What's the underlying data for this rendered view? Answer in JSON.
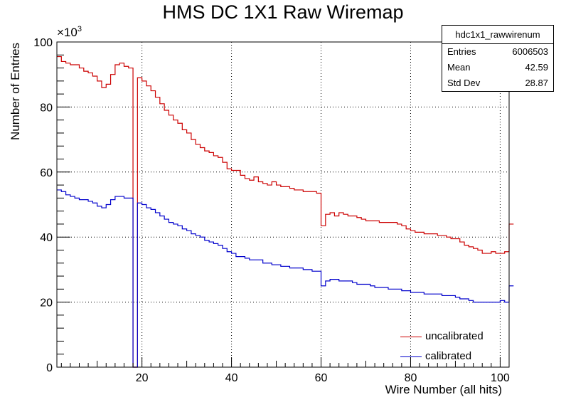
{
  "chart_data": {
    "type": "histogram",
    "title": "HMS DC 1X1 Raw Wiremap",
    "xlabel": "Wire Number (all hits)",
    "ylabel": "Number of Entries",
    "y_exponent_base": "×10",
    "y_exponent_power": "3",
    "xlim": [
      1,
      102
    ],
    "ylim": [
      0,
      100
    ],
    "x_ticks": [
      20,
      40,
      60,
      80,
      100
    ],
    "y_ticks": [
      0,
      20,
      40,
      60,
      80,
      100
    ],
    "grid": true,
    "legend_position": "bottom-right",
    "bin_width": 1,
    "bin_start": 1,
    "series": [
      {
        "name": "uncalibrated",
        "color": "#cc0000",
        "values": [
          95.5,
          94,
          93.5,
          93,
          93,
          92,
          91,
          90.5,
          89.5,
          88,
          86,
          87,
          90,
          93,
          93.5,
          92.5,
          92,
          0,
          89,
          88,
          86.5,
          85,
          83,
          81,
          79,
          77.5,
          76,
          75,
          73,
          72,
          70,
          68.5,
          67.5,
          66.5,
          66,
          65,
          64.5,
          63,
          61,
          60.5,
          60.5,
          59,
          58,
          57.5,
          58.5,
          57,
          56.5,
          56,
          57,
          56,
          55.5,
          55.5,
          55,
          54.5,
          54.5,
          54,
          54,
          54,
          53.5,
          43.5,
          47,
          47.5,
          46.5,
          47.5,
          47,
          46.5,
          46.5,
          46,
          45.5,
          45,
          45,
          45,
          44.5,
          44.5,
          44.5,
          44.5,
          44,
          43.5,
          42.5,
          42,
          41.5,
          41.5,
          41,
          41,
          41,
          40.5,
          40.5,
          40,
          39.5,
          39.5,
          38.5,
          37.5,
          37,
          36.5,
          36,
          35,
          35,
          35.5,
          35,
          35,
          35.5,
          44
        ]
      },
      {
        "name": "calibrated",
        "color": "#0000cc",
        "values": [
          54.5,
          54,
          53,
          52.5,
          52,
          51.5,
          51.5,
          51,
          50.5,
          49.5,
          49,
          50,
          51.5,
          52.5,
          52.5,
          52,
          52,
          0,
          50.5,
          50,
          49,
          48.5,
          47.5,
          46.5,
          45.5,
          44.5,
          44,
          43.5,
          42.5,
          42,
          41,
          40.5,
          40,
          39,
          38.5,
          38,
          37.5,
          36.5,
          35.5,
          35,
          34,
          34,
          33.5,
          33,
          33,
          33,
          32,
          32,
          31.5,
          31.5,
          31,
          31,
          30.5,
          30.5,
          30.5,
          30,
          30,
          29.5,
          29.5,
          25,
          26.5,
          27,
          27,
          26.5,
          26.5,
          26.5,
          26,
          25.5,
          25.5,
          25.5,
          25,
          24.5,
          24.5,
          24.5,
          24,
          24,
          24,
          23.5,
          23.5,
          23,
          23,
          23,
          22.5,
          22.5,
          22.5,
          22.5,
          22,
          22,
          22,
          21.5,
          21,
          21,
          20.5,
          20,
          20,
          20,
          20,
          20,
          20,
          20.5,
          20,
          25
        ]
      }
    ]
  },
  "stats": {
    "name": "hdc1x1_rawwirenum",
    "rows": [
      {
        "key": "Entries",
        "value": "6006503"
      },
      {
        "key": "Mean",
        "value": "42.59"
      },
      {
        "key": "Std Dev",
        "value": "28.87"
      }
    ]
  }
}
